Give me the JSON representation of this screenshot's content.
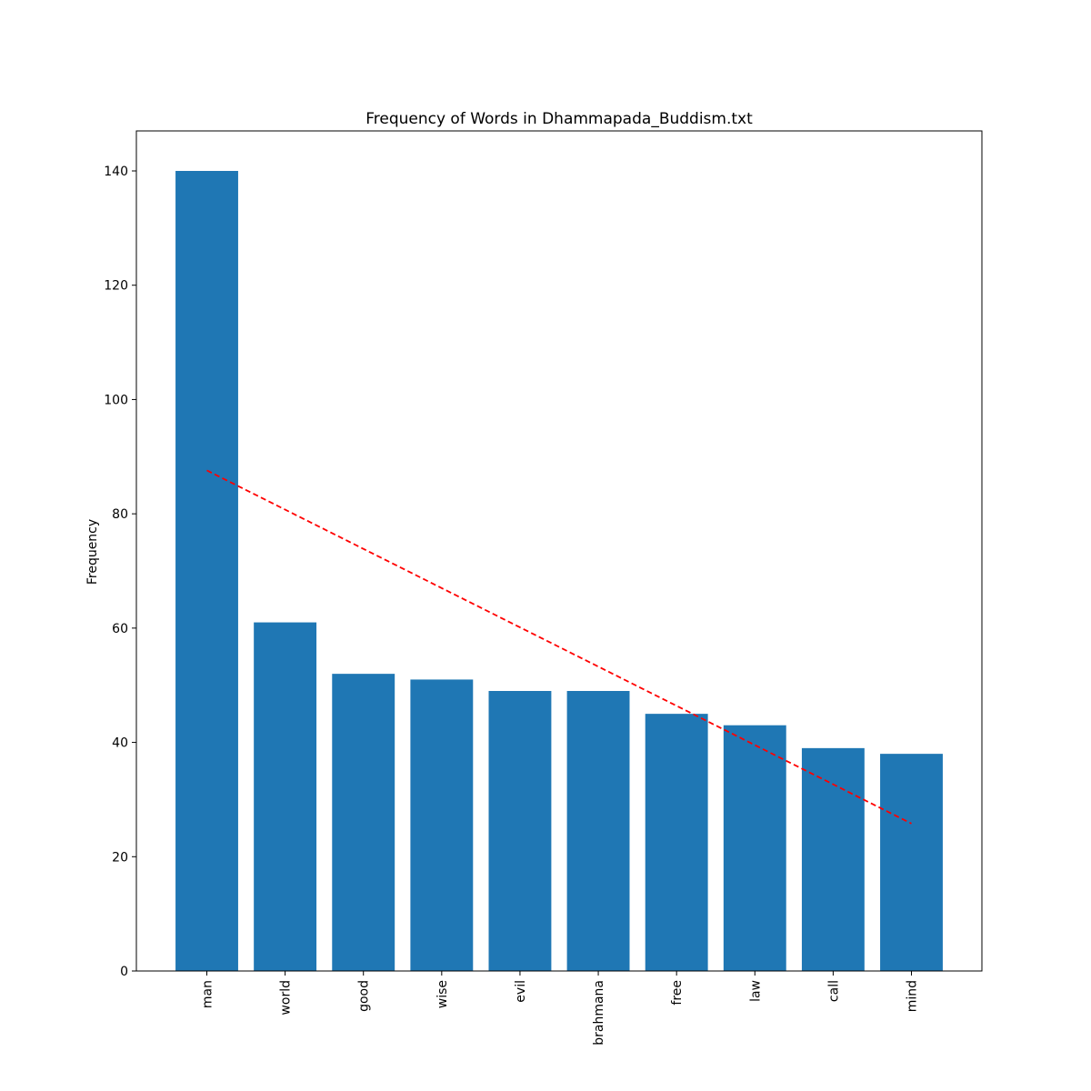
{
  "chart_data": {
    "type": "bar",
    "title": "Frequency of Words in Dhammapada_Buddism.txt",
    "xlabel": "",
    "ylabel": "Frequency",
    "categories": [
      "man",
      "world",
      "good",
      "wise",
      "evil",
      "brahmana",
      "free",
      "law",
      "call",
      "mind"
    ],
    "values": [
      140,
      61,
      52,
      51,
      49,
      49,
      45,
      43,
      39,
      38
    ],
    "ylim": [
      0,
      147
    ],
    "yticks": [
      0,
      20,
      40,
      60,
      80,
      100,
      120,
      140
    ],
    "trendline": {
      "style": "dashed",
      "start": 87.6,
      "end": 25.8
    },
    "bar_color": "#1f77b4",
    "trend_color": "#ff0000",
    "grid": false,
    "legend": "none"
  }
}
